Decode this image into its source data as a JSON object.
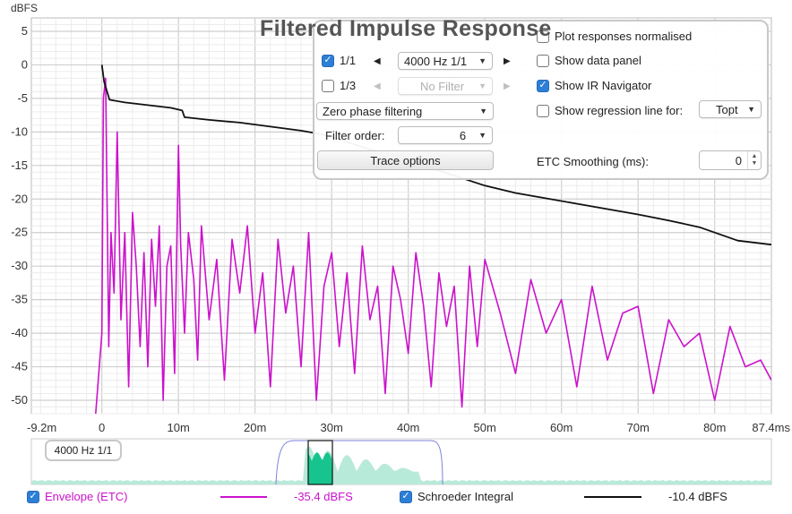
{
  "chart": {
    "title": "Filtered Impulse Response",
    "y_unit": "dBFS",
    "x_ticks": [
      "-9.2m",
      "0",
      "10m",
      "20m",
      "30m",
      "40m",
      "50m",
      "60m",
      "70m",
      "80m",
      "87.4ms"
    ],
    "y_ticks": [
      "5",
      "0",
      "-5",
      "-10",
      "-15",
      "-20",
      "-25",
      "-30",
      "-35",
      "-40",
      "-45",
      "-50"
    ]
  },
  "controls": {
    "row1": {
      "checkbox_label": "1/1",
      "checked": true,
      "filter_value": "4000 Hz 1/1"
    },
    "row2": {
      "checkbox_label": "1/3",
      "checked": false,
      "filter_value": "No Filter"
    },
    "filtering_mode": "Zero phase filtering",
    "filter_order_label": "Filter order:",
    "filter_order_value": "6",
    "trace_options_label": "Trace options",
    "plot_normalised_label": "Plot responses normalised",
    "plot_normalised_checked": false,
    "show_data_panel_label": "Show data panel",
    "show_data_panel_checked": false,
    "show_ir_navigator_label": "Show IR Navigator",
    "show_ir_navigator_checked": true,
    "show_regression_label": "Show regression line for:",
    "show_regression_checked": false,
    "regression_target": "Topt",
    "etc_smoothing_label": "ETC Smoothing (ms):",
    "etc_smoothing_value": "0"
  },
  "navigator": {
    "label": "4000 Hz 1/1"
  },
  "legend": {
    "envelope": {
      "label": "Envelope (ETC)",
      "checked": true,
      "value": "-35.4 dBFS",
      "color": "#cc11cc"
    },
    "schroeder": {
      "label": "Schroeder Integral",
      "checked": true,
      "value": "-10.4 dBFS",
      "color": "#111111"
    }
  },
  "chart_data": {
    "type": "line",
    "title": "Filtered Impulse Response",
    "xlabel": "",
    "ylabel": "dBFS",
    "xlim": [
      -9.2,
      87.4
    ],
    "ylim": [
      -52,
      7
    ],
    "x_unit": "ms",
    "grid": true,
    "series": [
      {
        "name": "Schroeder Integral",
        "color": "#111111",
        "x": [
          0,
          0.3,
          1,
          3,
          6,
          9,
          10.5,
          10.8,
          14,
          18,
          22,
          26,
          29,
          32,
          35,
          38,
          42,
          46,
          50,
          54,
          58,
          62,
          66,
          70,
          74,
          78,
          81,
          83,
          87.4
        ],
        "y": [
          0,
          -2.5,
          -5.2,
          -5.6,
          -6,
          -6.4,
          -6.8,
          -7.8,
          -8.2,
          -8.6,
          -9.2,
          -9.8,
          -10.4,
          -11.5,
          -12.6,
          -13.6,
          -15,
          -16.5,
          -18,
          -19.1,
          -19.9,
          -20.7,
          -21.5,
          -22.3,
          -23.2,
          -24.2,
          -25.4,
          -26.2,
          -26.8
        ]
      },
      {
        "name": "Envelope (ETC)",
        "color": "#cc11cc",
        "x": [
          -0.8,
          0,
          0.2,
          0.5,
          0.9,
          1.2,
          1.6,
          2,
          2.5,
          3,
          3.5,
          4,
          4.5,
          5,
          5.5,
          6,
          6.5,
          7,
          7.5,
          8,
          8.5,
          9,
          9.5,
          10,
          10.3,
          10.8,
          11.3,
          12,
          12.5,
          13,
          14,
          15,
          16,
          17,
          18,
          19,
          20,
          21,
          22,
          23,
          24,
          25,
          26,
          27,
          28,
          29,
          30,
          31,
          32,
          33,
          34,
          35,
          36,
          37,
          38,
          39,
          40,
          41,
          42,
          43,
          44,
          45,
          46,
          47,
          48,
          49,
          50,
          52,
          54,
          56,
          58,
          60,
          62,
          64,
          66,
          68,
          70,
          72,
          74,
          76,
          78,
          80,
          82,
          84,
          86,
          87.4
        ],
        "y": [
          -52,
          -40,
          -5,
          -2,
          -42,
          -25,
          -34,
          -10,
          -38,
          -25,
          -48,
          -22,
          -30,
          -42,
          -28,
          -45,
          -26,
          -36,
          -24,
          -50,
          -30,
          -27,
          -46,
          -12,
          -27,
          -40,
          -25,
          -32,
          -44,
          -24,
          -38,
          -29,
          -47,
          -26,
          -34,
          -24,
          -40,
          -31,
          -48,
          -26,
          -37,
          -30,
          -45,
          -25,
          -50,
          -33,
          -28,
          -42,
          -31,
          -46,
          -27,
          -38,
          -33,
          -49,
          -30,
          -35,
          -43,
          -28,
          -36,
          -48,
          -31,
          -39,
          -33,
          -51,
          -30,
          -42,
          -29,
          -37,
          -46,
          -32,
          -40,
          -35,
          -48,
          -33,
          -44,
          -37,
          -36,
          -49,
          -38,
          -42,
          -40,
          -50,
          -39,
          -45,
          -44,
          -47
        ]
      }
    ]
  }
}
